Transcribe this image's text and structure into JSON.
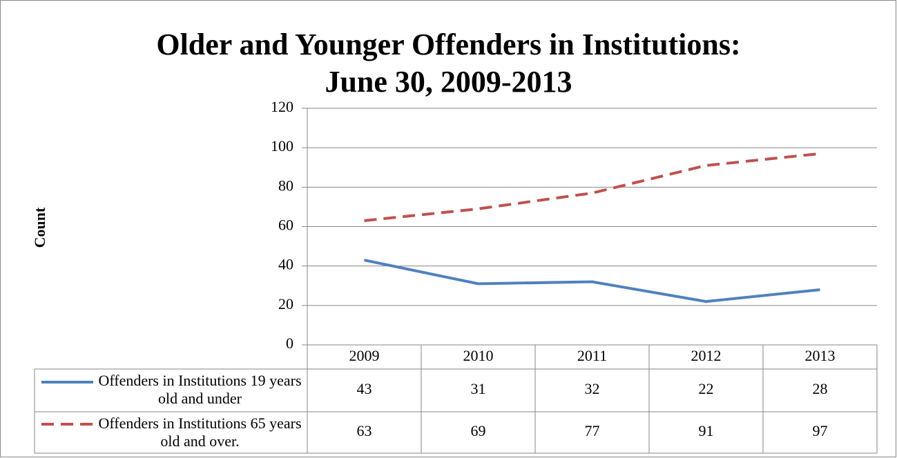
{
  "chart_data": {
    "type": "line",
    "title": "Older and Younger Offenders in Institutions:\nJune 30, 2009-2013",
    "y_label": "Count",
    "categories": [
      "2009",
      "2010",
      "2011",
      "2012",
      "2013"
    ],
    "series": [
      {
        "name": "Offenders in Institutions 19 years old and under",
        "color": "#4f81bd",
        "dash": false,
        "values": [
          43,
          31,
          32,
          22,
          28
        ]
      },
      {
        "name": "Offenders in Institutions 65 years old and over.",
        "color": "#c0504d",
        "dash": true,
        "values": [
          63,
          69,
          77,
          91,
          97
        ]
      }
    ],
    "ylim": [
      0,
      120
    ],
    "yticks": [
      0,
      20,
      40,
      60,
      80,
      100,
      120
    ],
    "grid": true
  }
}
